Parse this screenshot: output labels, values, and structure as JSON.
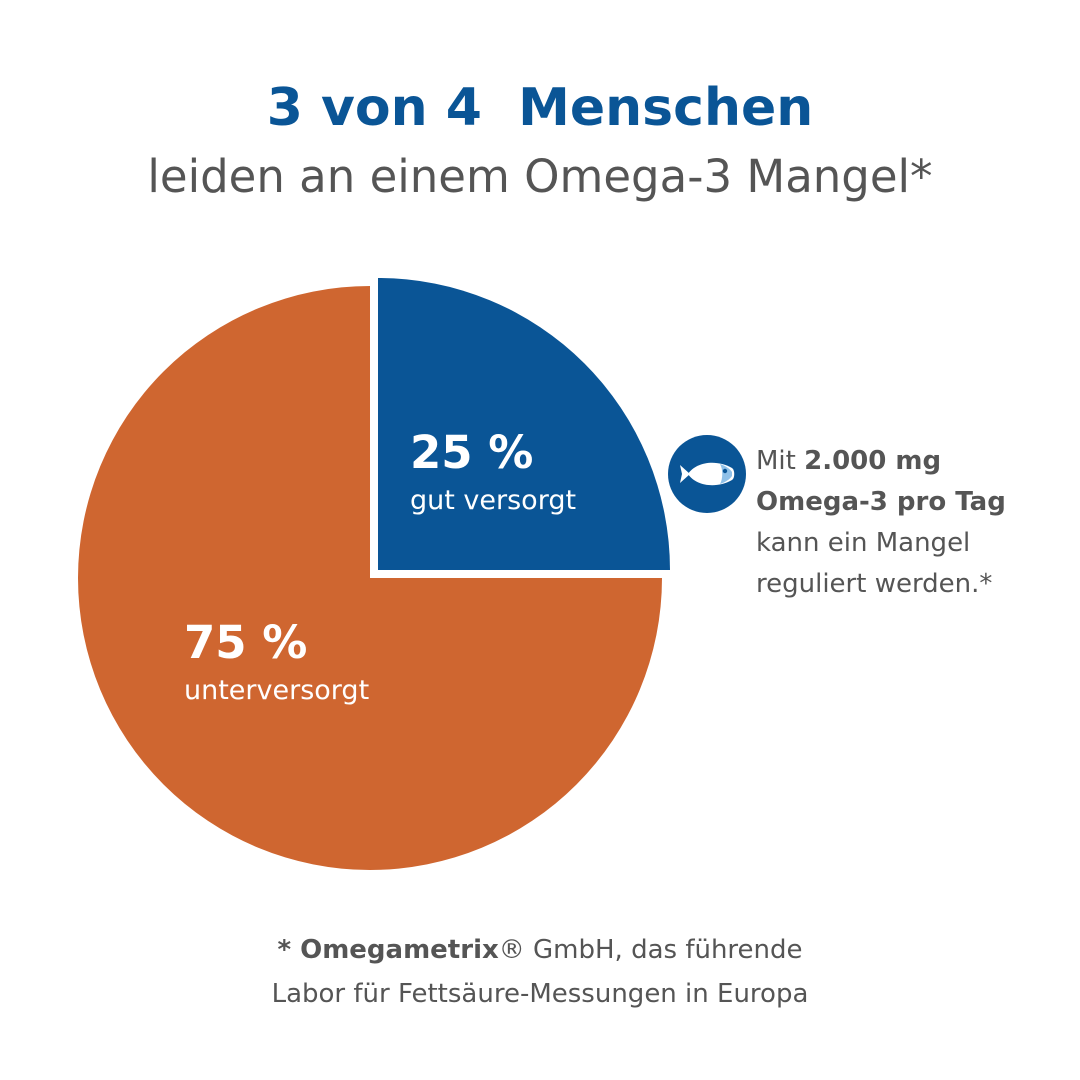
{
  "header": {
    "title_line1": "3 von 4  Menschen",
    "title_line2": "leiden an einem Omega-3 Mangel*"
  },
  "colors": {
    "blue": "#0a5596",
    "orange": "#cf6630",
    "text_gray": "#555555"
  },
  "chart_data": {
    "type": "pie",
    "slices": [
      {
        "value_label": "25 %",
        "label": "gut versorgt",
        "value": 25,
        "color": "#0a5596",
        "exploded": true
      },
      {
        "value_label": "75 %",
        "label": "unterversorgt",
        "value": 75,
        "color": "#cf6630",
        "exploded": false
      }
    ]
  },
  "callout": {
    "icon": "fish-icon",
    "prefix": "Mit ",
    "bold1": "2.000 mg",
    "bold2": "Omega-3 pro Tag",
    "line3": "kann ein Mangel",
    "line4": "reguliert werden.*"
  },
  "footnote": {
    "star_brand": "* Omegametrix",
    "rest_line1": "® GmbH, das führende",
    "line2": "Labor für Fettsäure-Messungen in Europa"
  }
}
